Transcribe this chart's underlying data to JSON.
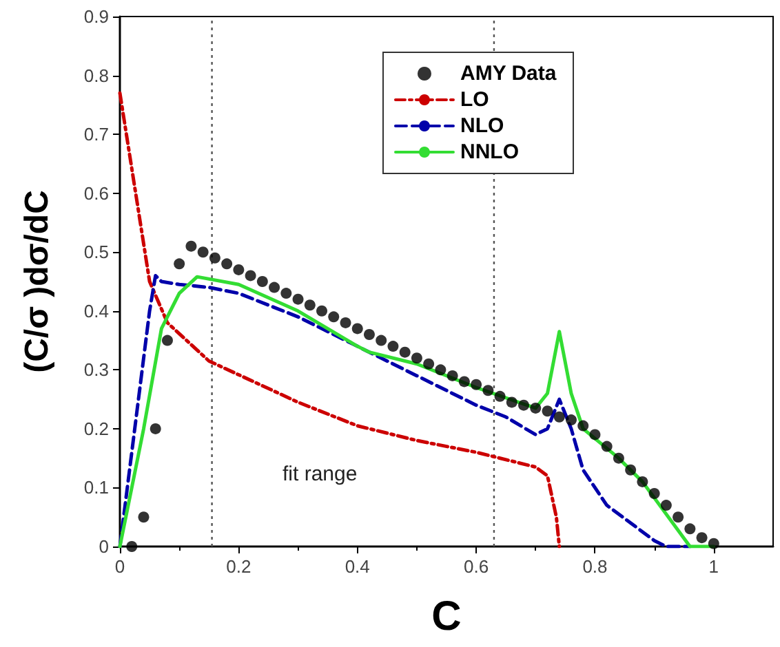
{
  "chart_data": {
    "type": "line",
    "xlabel": "C",
    "ylabel": "(C/σ )dσ/dC",
    "xlim": [
      0,
      1.1
    ],
    "xticks": [
      0,
      0.2,
      0.4,
      0.6,
      0.8,
      1.0
    ],
    "ylim": [
      0,
      0.9
    ],
    "yticks": [
      0,
      0.1,
      0.2,
      0.3,
      0.4,
      0.5,
      0.6,
      0.7,
      0.8,
      0.9
    ],
    "legend": "top right",
    "grid": false,
    "series": [
      {
        "name": "AMY Data",
        "type": "scatter",
        "marker": "circle",
        "color": "#000000",
        "x": [
          0.02,
          0.04,
          0.06,
          0.08,
          0.1,
          0.12,
          0.14,
          0.16,
          0.18,
          0.2,
          0.22,
          0.24,
          0.26,
          0.28,
          0.3,
          0.32,
          0.34,
          0.36,
          0.38,
          0.4,
          0.42,
          0.44,
          0.46,
          0.48,
          0.5,
          0.52,
          0.54,
          0.56,
          0.58,
          0.6,
          0.62,
          0.64,
          0.66,
          0.68,
          0.7,
          0.72,
          0.74,
          0.76,
          0.78,
          0.8,
          0.82,
          0.84,
          0.86,
          0.88,
          0.9,
          0.92,
          0.94,
          0.96,
          0.98,
          1.0
        ],
        "values": [
          0,
          0.05,
          0.2,
          0.35,
          0.48,
          0.51,
          0.5,
          0.49,
          0.48,
          0.47,
          0.46,
          0.45,
          0.44,
          0.43,
          0.42,
          0.41,
          0.4,
          0.39,
          0.38,
          0.37,
          0.36,
          0.35,
          0.34,
          0.33,
          0.32,
          0.31,
          0.3,
          0.29,
          0.28,
          0.275,
          0.265,
          0.255,
          0.245,
          0.24,
          0.235,
          0.23,
          0.22,
          0.215,
          0.205,
          0.19,
          0.17,
          0.15,
          0.13,
          0.11,
          0.09,
          0.07,
          0.05,
          0.03,
          0.015,
          0.005
        ]
      },
      {
        "name": "LO",
        "line_style": "dashdot",
        "marker": "none",
        "color": "#cc0000",
        "x": [
          0,
          0.05,
          0.08,
          0.15,
          0.3,
          0.4,
          0.5,
          0.6,
          0.7,
          0.72,
          0.735,
          0.74
        ],
        "values": [
          0.77,
          0.45,
          0.38,
          0.315,
          0.245,
          0.205,
          0.18,
          0.16,
          0.135,
          0.12,
          0.05,
          0
        ]
      },
      {
        "name": "NLO",
        "line_style": "dashed",
        "marker": "none",
        "color": "#0000aa",
        "x": [
          0,
          0.05,
          0.06,
          0.07,
          0.1,
          0.15,
          0.2,
          0.3,
          0.4,
          0.5,
          0.6,
          0.65,
          0.7,
          0.72,
          0.74,
          0.76,
          0.78,
          0.82,
          0.86,
          0.9,
          0.92,
          0.96
        ],
        "values": [
          0,
          0.4,
          0.46,
          0.45,
          0.445,
          0.44,
          0.43,
          0.39,
          0.34,
          0.29,
          0.24,
          0.22,
          0.19,
          0.2,
          0.25,
          0.2,
          0.13,
          0.07,
          0.04,
          0.01,
          0,
          0
        ]
      },
      {
        "name": "NNLO",
        "line_style": "solid",
        "marker": "none",
        "color": "#33dd33",
        "x": [
          0,
          0.04,
          0.07,
          0.1,
          0.13,
          0.2,
          0.3,
          0.4,
          0.42,
          0.5,
          0.6,
          0.7,
          0.72,
          0.74,
          0.76,
          0.78,
          0.84,
          0.88,
          0.96,
          1.0
        ],
        "values": [
          0,
          0.2,
          0.37,
          0.43,
          0.458,
          0.445,
          0.4,
          0.34,
          0.33,
          0.31,
          0.27,
          0.235,
          0.26,
          0.365,
          0.26,
          0.2,
          0.15,
          0.11,
          0,
          0
        ]
      }
    ],
    "ref_lines": [
      {
        "axis": "x",
        "value": 0.155,
        "color": "#555555",
        "line_style": "dotted"
      },
      {
        "axis": "x",
        "value": 0.63,
        "color": "#555555",
        "line_style": "dotted"
      }
    ],
    "annotations": [
      "fit range"
    ]
  }
}
